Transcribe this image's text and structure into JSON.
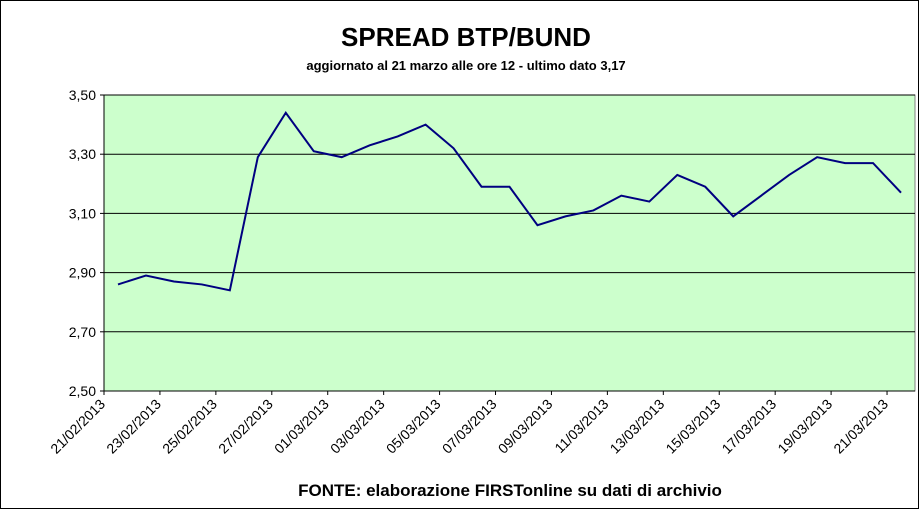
{
  "chart_data": {
    "type": "line",
    "title": "SPREAD  BTP/BUND",
    "subtitle": "aggiornato al 21 marzo alle ore 12 - ultimo dato 3,17",
    "source": "FONTE: elaborazione FIRSTonline su dati di archivio",
    "categories": [
      "21/02/2013",
      null,
      "23/02/2013",
      null,
      "25/02/2013",
      null,
      "27/02/2013",
      null,
      "01/03/2013",
      null,
      "03/03/2013",
      null,
      "05/03/2013",
      null,
      "07/03/2013",
      null,
      "09/03/2013",
      null,
      "11/03/2013",
      null,
      "13/03/2013",
      null,
      "15/03/2013",
      null,
      "17/03/2013",
      null,
      "19/03/2013",
      null,
      "21/03/2013"
    ],
    "values": [
      2.86,
      2.89,
      2.87,
      2.86,
      2.84,
      3.29,
      3.44,
      3.31,
      3.29,
      3.33,
      3.36,
      3.4,
      3.32,
      3.19,
      3.19,
      3.06,
      3.09,
      3.11,
      3.16,
      3.14,
      3.23,
      3.19,
      3.09,
      3.16,
      3.23,
      3.29,
      3.27,
      3.27,
      3.17
    ],
    "color": "#000080",
    "ylim": [
      2.5,
      3.5
    ],
    "yticks": [
      {
        "value": 2.5,
        "label": "2,50"
      },
      {
        "value": 2.7,
        "label": "2,70"
      },
      {
        "value": 2.9,
        "label": "2,90"
      },
      {
        "value": 3.1,
        "label": "3,10"
      },
      {
        "value": 3.3,
        "label": "3,30"
      },
      {
        "value": 3.5,
        "label": "3,50"
      }
    ],
    "grid": true
  }
}
